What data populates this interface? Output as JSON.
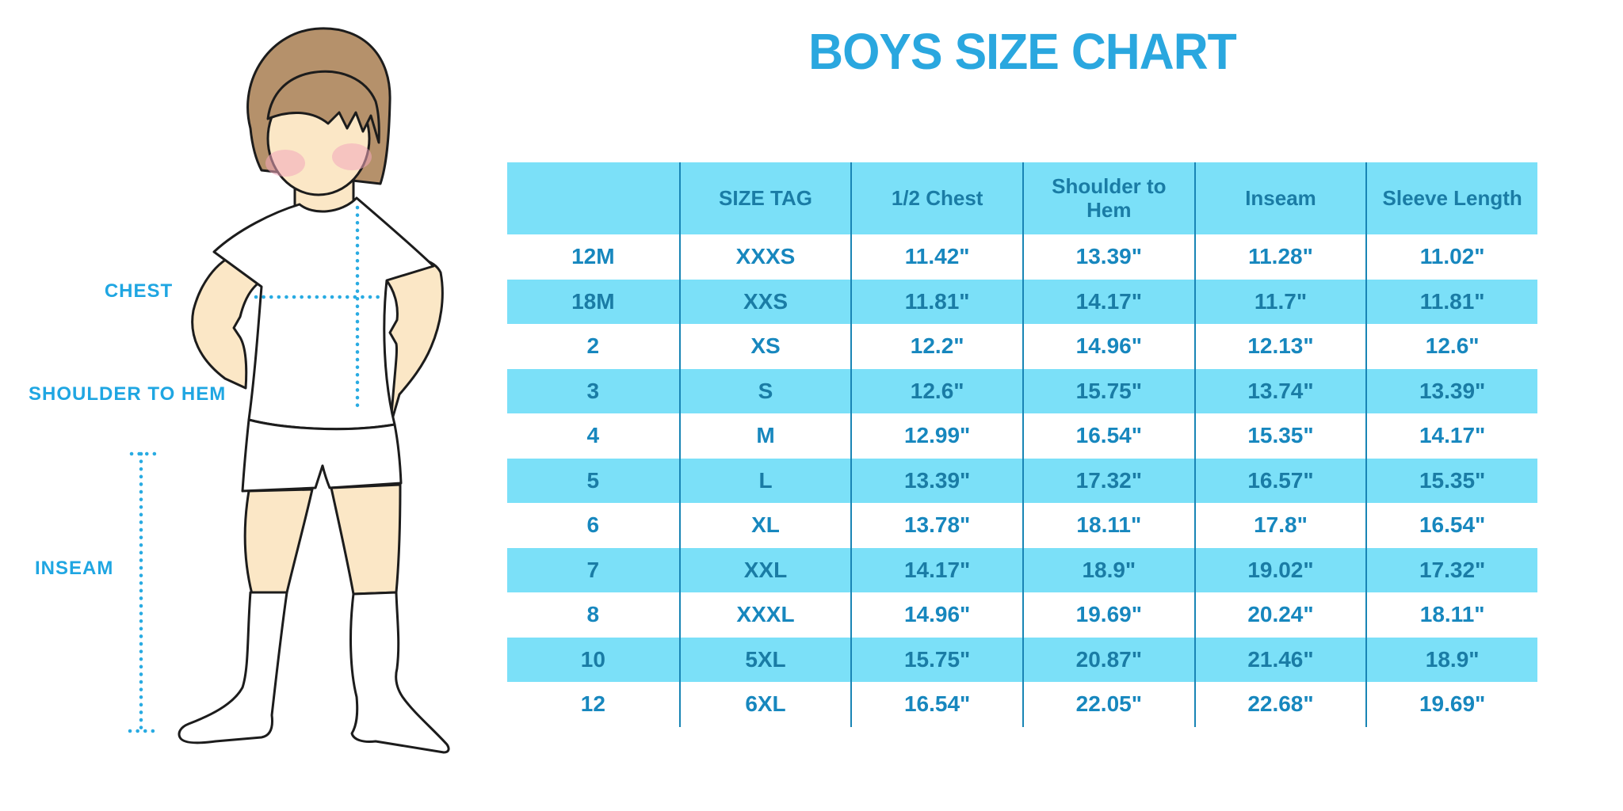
{
  "title": "BOYS SIZE CHART",
  "figure": {
    "labels": {
      "chest": "CHEST",
      "shoulder_to_hem": "SHOULDER TO HEM",
      "inseam": "INSEAM"
    }
  },
  "chart_data": {
    "type": "table",
    "title": "BOYS SIZE CHART",
    "columns": [
      "",
      "SIZE TAG",
      "1/2 Chest",
      "Shoulder to Hem",
      "Inseam",
      "Sleeve Length"
    ],
    "rows": [
      [
        "12M",
        "XXXS",
        "11.42\"",
        "13.39\"",
        "11.28\"",
        "11.02\""
      ],
      [
        "18M",
        "XXS",
        "11.81\"",
        "14.17\"",
        "11.7\"",
        "11.81\""
      ],
      [
        "2",
        "XS",
        "12.2\"",
        "14.96\"",
        "12.13\"",
        "12.6\""
      ],
      [
        "3",
        "S",
        "12.6\"",
        "15.75\"",
        "13.74\"",
        "13.39\""
      ],
      [
        "4",
        "M",
        "12.99\"",
        "16.54\"",
        "15.35\"",
        "14.17\""
      ],
      [
        "5",
        "L",
        "13.39\"",
        "17.32\"",
        "16.57\"",
        "15.35\""
      ],
      [
        "6",
        "XL",
        "13.78\"",
        "18.11\"",
        "17.8\"",
        "16.54\""
      ],
      [
        "7",
        "XXL",
        "14.17\"",
        "18.9\"",
        "19.02\"",
        "17.32\""
      ],
      [
        "8",
        "XXXL",
        "14.96\"",
        "19.69\"",
        "20.24\"",
        "18.11\""
      ],
      [
        "10",
        "5XL",
        "15.75\"",
        "20.87\"",
        "21.46\"",
        "18.9\""
      ],
      [
        "12",
        "6XL",
        "16.54\"",
        "22.05\"",
        "22.68\"",
        "19.69\""
      ]
    ],
    "layout": {
      "grid": "vertical-dividers-only",
      "alternating_rows": true,
      "first_data_row_background": "white"
    }
  },
  "colors": {
    "title_blue": "#2AA7DF",
    "label_blue": "#1FA6E2",
    "dotted_line_blue": "#29ABE2",
    "header_row_bg": "#7BE0F8",
    "alt_row_bg": "#7BE0F8",
    "divider_line": "#1985B5",
    "table_text": "#1787BE",
    "table_text_on_blue": "#1A7CA5",
    "skin": "#FBE7C6",
    "hair": "#B5916B",
    "blush": "#F3A8BC",
    "outline": "#1c1c1c"
  }
}
